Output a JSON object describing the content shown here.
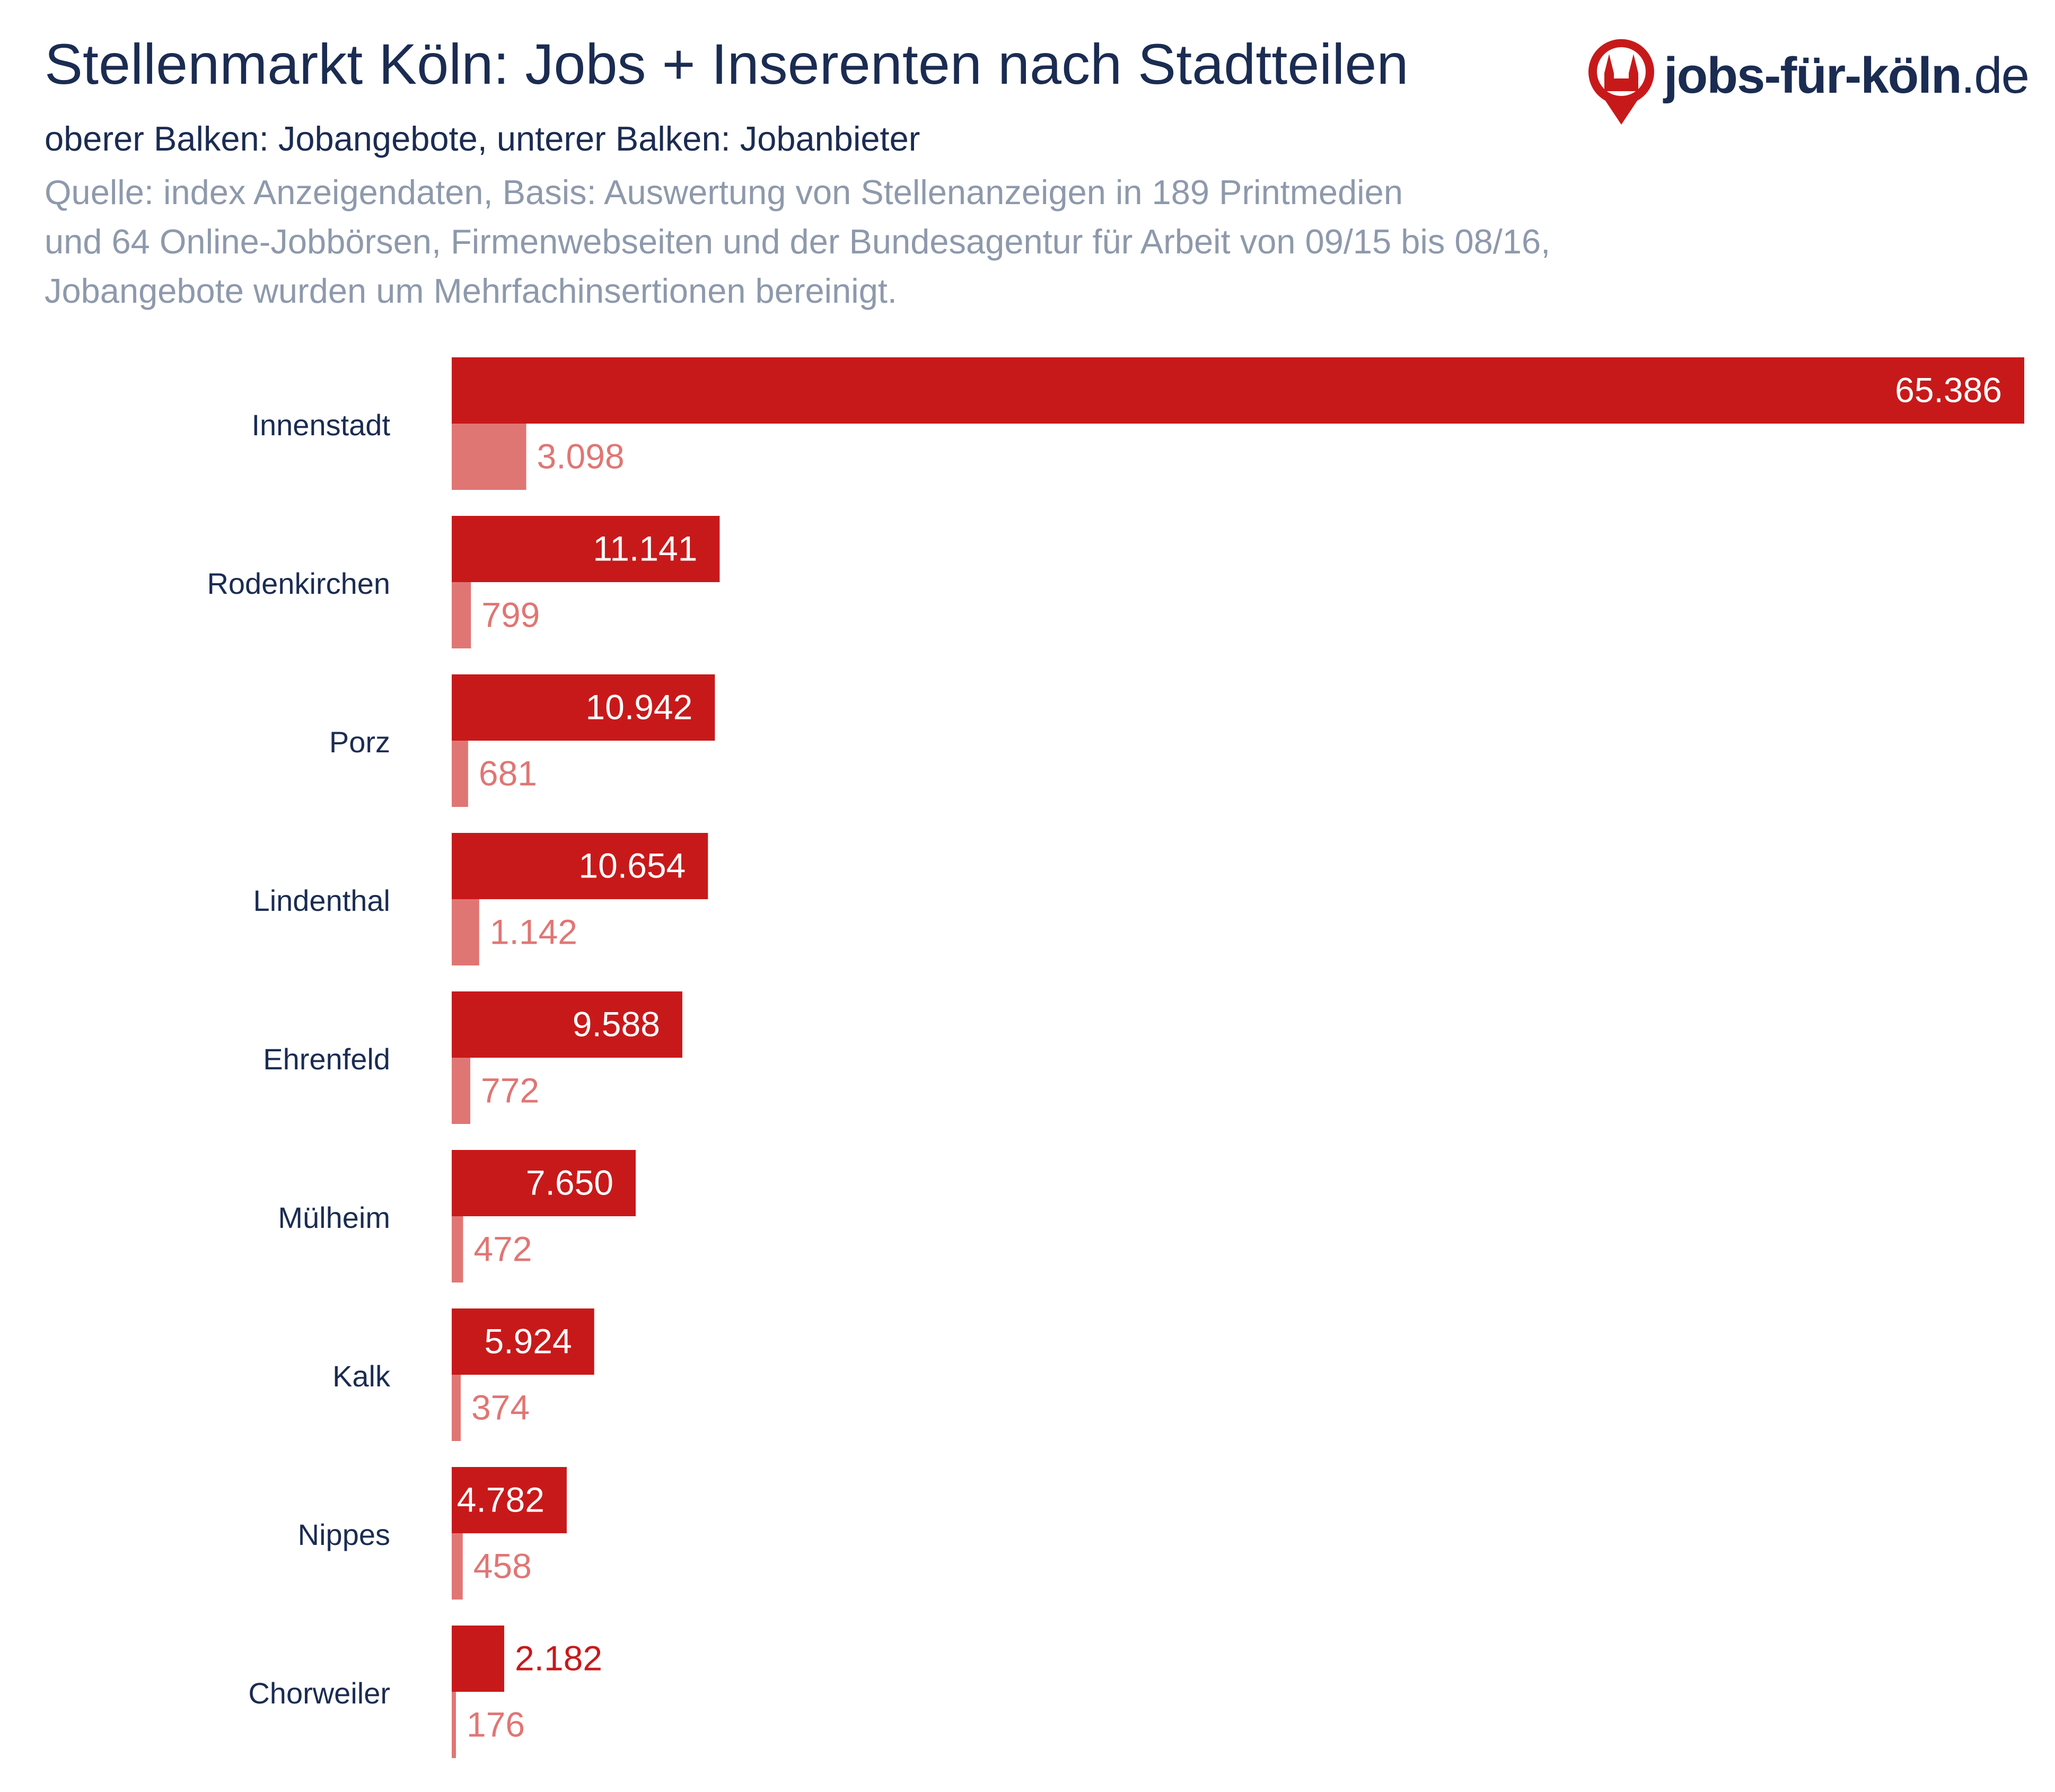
{
  "header": {
    "title": "Stellenmarkt Köln: Jobs + Inserenten nach Stadtteilen",
    "subtitle": "oberer Balken: Jobangebote, unterer Balken: Jobanbieter",
    "source_lines": [
      "Quelle: index Anzeigendaten, Basis: Auswertung von Stellenanzeigen in 189 Printmedien",
      "und 64 Online-Jobbörsen, Firmenwebseiten und der Bundesagentur für Arbeit von 09/15 bis 08/16,",
      "Jobangebote wurden um Mehrfachinsertionen bereinigt."
    ]
  },
  "logo": {
    "text": "jobs-für-köln",
    "suffix": ".de",
    "icon": "cologne-cathedral-pin-icon"
  },
  "colors": {
    "jobs": "#c8191a",
    "employers": "#e07674",
    "label_dark": "#1b2c52",
    "source_text": "#8e99ac"
  },
  "chart_data": {
    "type": "bar",
    "orientation": "horizontal",
    "categories": [
      "Innenstadt",
      "Rodenkirchen",
      "Porz",
      "Lindenthal",
      "Ehrenfeld",
      "Mülheim",
      "Kalk",
      "Nippes",
      "Chorweiler"
    ],
    "series": [
      {
        "name": "Jobangebote",
        "values": [
          65386,
          11141,
          10942,
          10654,
          9588,
          7650,
          5924,
          4782,
          2182
        ],
        "labels": [
          "65.386",
          "11.141",
          "10.942",
          "10.654",
          "9.588",
          "7.650",
          "5.924",
          "4.782",
          "2.182"
        ]
      },
      {
        "name": "Jobanbieter",
        "values": [
          3098,
          799,
          681,
          1142,
          772,
          472,
          374,
          458,
          176
        ],
        "labels": [
          "3.098",
          "799",
          "681",
          "1.142",
          "772",
          "472",
          "374",
          "458",
          "176"
        ]
      }
    ],
    "xlim": [
      0,
      65386
    ],
    "grid": false,
    "legend": "none"
  }
}
